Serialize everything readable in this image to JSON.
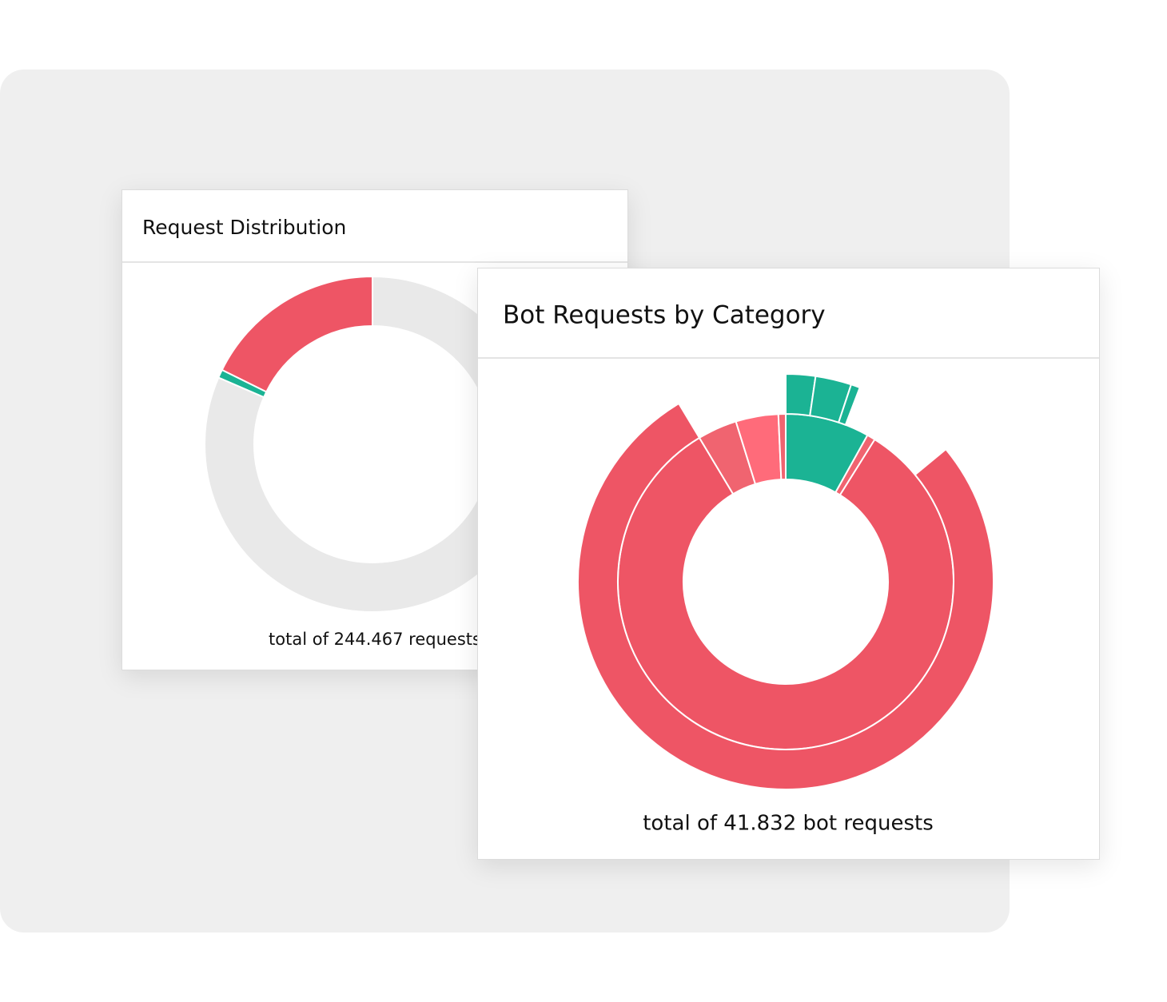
{
  "chart_data": [
    {
      "type": "donut",
      "title": "Request Distribution",
      "total_label": "total of 244.467 requests",
      "series": [
        {
          "values": [
            17.7,
            0.8,
            81.5
          ],
          "colors": [
            "#ee5565",
            "#1bb394",
            "#e9e9e9"
          ]
        }
      ]
    },
    {
      "type": "sunburst",
      "title": "Bot Requests by Category",
      "total_label": "total of 41.832 bot requests",
      "series": [
        {
          "values": [
            8.1,
            0.8,
            82.5,
            3.8,
            4.1,
            0.7
          ],
          "colors": [
            "#1bb394",
            "#f06470",
            "#ee5565",
            "#f06470",
            "#ff6b7a",
            "#f06470"
          ]
        },
        {
          "values": [
            2.3,
            2.8,
            0.7,
            8.2,
            77.4,
            8.6
          ],
          "colors": [
            "#1bb394",
            "#1bb394",
            "#1bb394",
            "none",
            "#ee5565",
            "none"
          ]
        }
      ]
    }
  ]
}
